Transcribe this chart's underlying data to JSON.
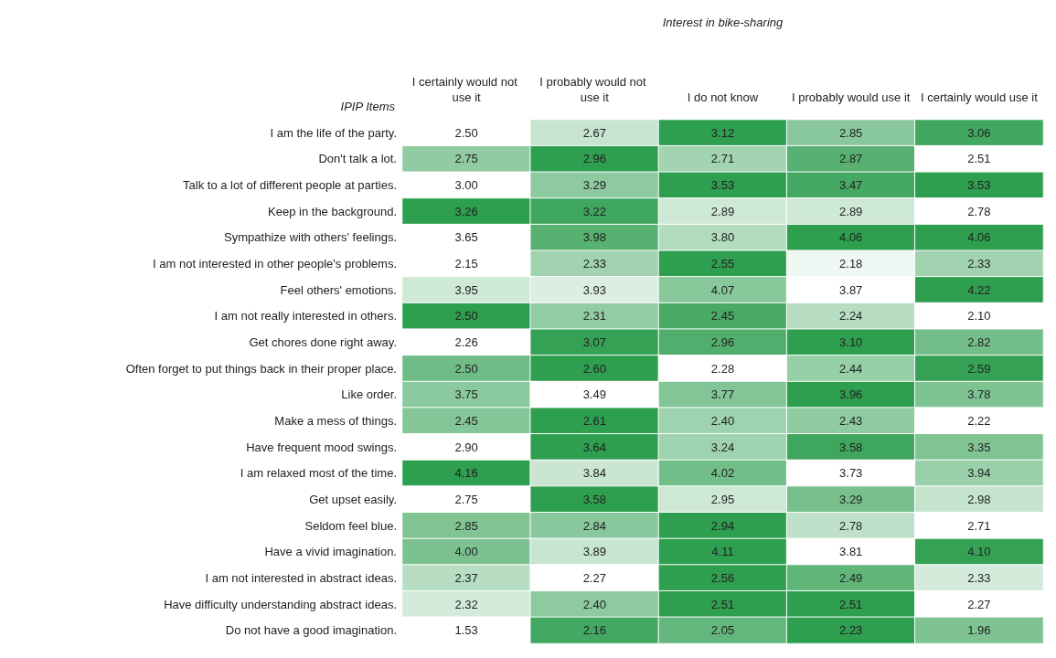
{
  "chart_data": {
    "type": "heatmap",
    "xlabel": "Interest in bike-sharing",
    "ylabel": "IPIP Items",
    "color": "#2e9e4f",
    "categories": [
      "I certainly would not use it",
      "I probably would not use it",
      "I do not know",
      "I probably would use it",
      "I certainly would use it"
    ],
    "y_categories": [
      "I am the life of the party.",
      "Don't talk a lot.",
      "Talk to a lot of different people at parties.",
      "Keep in the background.",
      "Sympathize with others' feelings.",
      "I am not interested in other people's problems.",
      "Feel others' emotions.",
      "I am not really interested in others.",
      "Get chores done right away.",
      "Often forget to put things back in their proper place.",
      "Like order.",
      "Make a mess of things.",
      "Have frequent mood swings.",
      "I am relaxed most of the time.",
      "Get upset easily.",
      "Seldom feel blue.",
      "Have a vivid imagination.",
      "I am not interested in abstract ideas.",
      "Have difficulty understanding abstract ideas.",
      "Do not have a good imagination."
    ],
    "cells": [
      [
        2.5,
        2.67,
        3.12,
        2.85,
        3.06
      ],
      [
        2.75,
        2.96,
        2.71,
        2.87,
        2.51
      ],
      [
        3.0,
        3.29,
        3.53,
        3.47,
        3.53
      ],
      [
        3.26,
        3.22,
        2.89,
        2.89,
        2.78
      ],
      [
        3.65,
        3.98,
        3.8,
        4.06,
        4.06
      ],
      [
        2.15,
        2.33,
        2.55,
        2.18,
        2.33
      ],
      [
        3.95,
        3.93,
        4.07,
        3.87,
        4.22
      ],
      [
        2.5,
        2.31,
        2.45,
        2.24,
        2.1
      ],
      [
        2.26,
        3.07,
        2.96,
        3.1,
        2.82
      ],
      [
        2.5,
        2.6,
        2.28,
        2.44,
        2.59
      ],
      [
        3.75,
        3.49,
        3.77,
        3.96,
        3.78
      ],
      [
        2.45,
        2.61,
        2.4,
        2.43,
        2.22
      ],
      [
        2.9,
        3.64,
        3.24,
        3.58,
        3.35
      ],
      [
        4.16,
        3.84,
        4.02,
        3.73,
        3.94
      ],
      [
        2.75,
        3.58,
        2.95,
        3.29,
        2.98
      ],
      [
        2.85,
        2.84,
        2.94,
        2.78,
        2.71
      ],
      [
        4.0,
        3.89,
        4.11,
        3.81,
        4.1
      ],
      [
        2.37,
        2.27,
        2.56,
        2.49,
        2.33
      ],
      [
        2.32,
        2.4,
        2.51,
        2.51,
        2.27
      ],
      [
        1.53,
        2.16,
        2.05,
        2.23,
        1.96
      ]
    ],
    "cell_labels": [
      [
        "2.50",
        "2.67",
        "3.12",
        "2.85",
        "3.06"
      ],
      [
        "2.75",
        "2.96",
        "2.71",
        "2.87",
        "2.51"
      ],
      [
        "3.00",
        "3.29",
        "3.53",
        "3.47",
        "3.53"
      ],
      [
        "3.26",
        "3.22",
        "2.89",
        "2.89",
        "2.78"
      ],
      [
        "3.65",
        "3.98",
        "3.80",
        "4.06",
        "4.06"
      ],
      [
        "2.15",
        "2.33",
        "2.55",
        "2.18",
        "2.33"
      ],
      [
        "3.95",
        "3.93",
        "4.07",
        "3.87",
        "4.22"
      ],
      [
        "2.50",
        "2.31",
        "2.45",
        "2.24",
        "2.10"
      ],
      [
        "2.26",
        "3.07",
        "2.96",
        "3.10",
        "2.82"
      ],
      [
        "2.50",
        "2.60",
        "2.28",
        "2.44",
        "2.59"
      ],
      [
        "3.75",
        "3.49",
        "3.77",
        "3.96",
        "3.78"
      ],
      [
        "2.45",
        "2.61",
        "2.40",
        "2.43",
        "2.22"
      ],
      [
        "2.90",
        "3.64",
        "3.24",
        "3.58",
        "3.35"
      ],
      [
        "4.16",
        "3.84",
        "4.02",
        "3.73",
        "3.94"
      ],
      [
        "2.75",
        "3.58",
        "2.95",
        "3.29",
        "2.98"
      ],
      [
        "2.85",
        "2.84",
        "2.94",
        "2.78",
        "2.71"
      ],
      [
        "4.00",
        "3.89",
        "4.11",
        "3.81",
        "4.10"
      ],
      [
        "2.37",
        "2.27",
        "2.56",
        "2.49",
        "2.33"
      ],
      [
        "2.32",
        "2.40",
        "2.51",
        "2.51",
        "2.27"
      ],
      [
        "1.53",
        "2.16",
        "2.05",
        "2.23",
        "1.96"
      ]
    ]
  }
}
